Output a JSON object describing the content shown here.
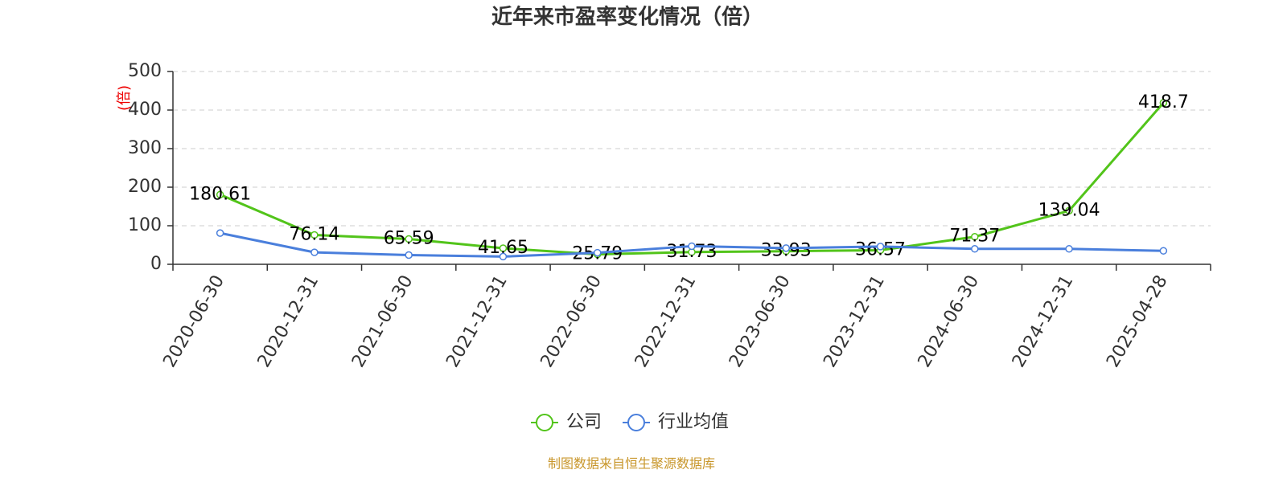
{
  "chart_data": {
    "type": "line",
    "title": "近年来市盈率变化情况（倍）",
    "y_label": "(倍)",
    "source": "制图数据来自恒生聚源数据库",
    "categories": [
      "2020-06-30",
      "2020-12-31",
      "2021-06-30",
      "2021-12-31",
      "2022-06-30",
      "2022-12-31",
      "2023-06-30",
      "2023-12-31",
      "2024-06-30",
      "2024-12-31",
      "2025-04-28"
    ],
    "series": [
      {
        "name": "公司",
        "color": "#52c41a",
        "values": [
          180.61,
          76.14,
          65.59,
          41.65,
          25.79,
          31.73,
          33.93,
          36.57,
          71.37,
          139.04,
          418.7
        ],
        "show_labels": true
      },
      {
        "name": "行业均值",
        "color": "#4a7fdc",
        "values": [
          81,
          31,
          24,
          20,
          30,
          47,
          42,
          46,
          40,
          40,
          35
        ],
        "show_labels": false
      }
    ],
    "ylim": [
      0,
      500
    ],
    "yticks": [
      0,
      100,
      200,
      300,
      400,
      500
    ],
    "grid": true,
    "legend": "bottom"
  }
}
